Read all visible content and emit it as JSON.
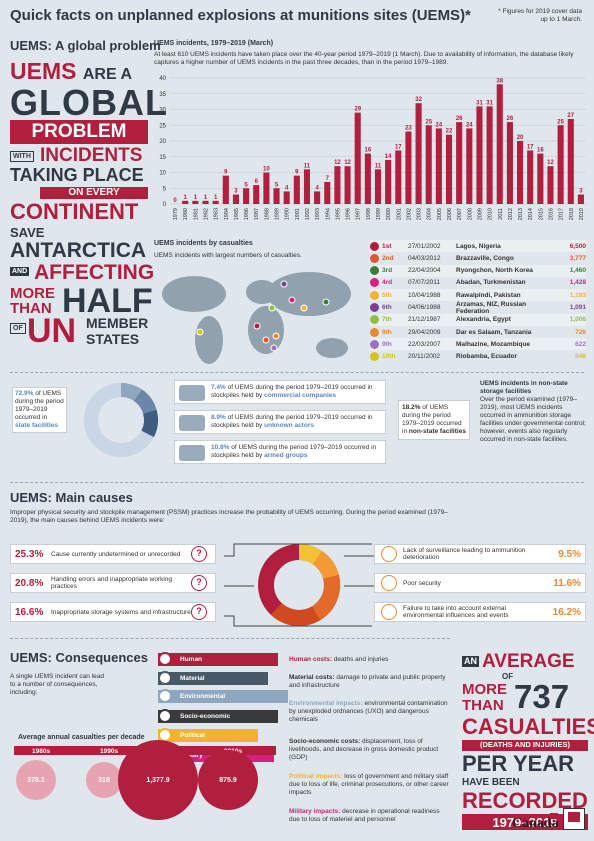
{
  "header": {
    "title": "Quick facts on unplanned explosions at munitions sites (UEMS)*",
    "footnote_line1": "* Figures for 2019 cover data",
    "footnote_line2": "up to 1 March."
  },
  "global": {
    "section_title": "UEMS: A global problem",
    "slogan": {
      "w1": "UEMS",
      "w2": "ARE A",
      "w3": "GLOBAL",
      "w4": "PROBLEM",
      "w5": "WITH",
      "w6": "INCIDENTS",
      "w7": "TAKING PLACE",
      "w8": "ON EVERY",
      "w9": "CONTINENT",
      "w10": "SAVE",
      "w11": "ANTARCTICA",
      "w12": "AND",
      "w13": "AFFECTING",
      "w14": "MORE",
      "w15": "THAN",
      "w16": "HALF",
      "w17": "OF",
      "w18": "UN",
      "w19": "MEMBER",
      "w20": "STATES"
    }
  },
  "chart_title": "UEMS incidents, 1979–2019 (March)",
  "chart_desc": "At least 610 UEMS incidents have taken place over the 40-year period 1979–2019 (1 March). Due to availability of information, the database likely captures a higher number of UEMS incidents in the past three decades, than in the period 1979–1989.",
  "chart_data": {
    "type": "bar",
    "title": "UEMS incidents, 1979–2019 (March)",
    "ylim": [
      0,
      40
    ],
    "yticks": [
      0,
      5,
      10,
      15,
      20,
      25,
      30,
      35,
      40
    ],
    "categories": [
      "1979",
      "1980",
      "1981",
      "1982",
      "1983",
      "1984",
      "1985",
      "1986",
      "1987",
      "1988",
      "1989",
      "1990",
      "1991",
      "1992",
      "1993",
      "1994",
      "1995",
      "1996",
      "1997",
      "1998",
      "1999",
      "2000",
      "2001",
      "2002",
      "2003",
      "2004",
      "2005",
      "2006",
      "2007",
      "2008",
      "2009",
      "2010",
      "2011",
      "2012",
      "2013",
      "2014",
      "2015",
      "2016",
      "2017",
      "2018",
      "2019"
    ],
    "values": [
      0,
      1,
      1,
      1,
      1,
      9,
      3,
      5,
      6,
      10,
      5,
      4,
      9,
      11,
      4,
      7,
      12,
      12,
      29,
      16,
      11,
      14,
      17,
      23,
      32,
      25,
      24,
      22,
      26,
      24,
      31,
      31,
      38,
      26,
      20,
      17,
      16,
      12,
      25,
      27,
      3
    ],
    "bar_color": "#b01f3e"
  },
  "casualties": {
    "title": "UEMS incidents by casualties",
    "subtitle": "UEMS incidents with largest numbers of casualties.",
    "rows": [
      {
        "rank": "1st",
        "date": "27/01/2002",
        "place": "Lagos, Nigeria",
        "num": "6,500",
        "color": "#b01f3e"
      },
      {
        "rank": "2nd",
        "date": "04/03/2012",
        "place": "Brazzaville, Congo",
        "num": "3,777",
        "color": "#e0572a"
      },
      {
        "rank": "3rd",
        "date": "22/04/2004",
        "place": "Ryongchon, North Korea",
        "num": "1,460",
        "color": "#3b7d3b"
      },
      {
        "rank": "4rd",
        "date": "07/07/2011",
        "place": "Abadan, Turkmenistan",
        "num": "1,428",
        "color": "#d6207c"
      },
      {
        "rank": "5th",
        "date": "10/04/1988",
        "place": "Rawalpindi, Pakistan",
        "num": "1,193",
        "color": "#f2b233"
      },
      {
        "rank": "6th",
        "date": "04/06/1988",
        "place": "Arzamas, NIZ, Russian Federation",
        "num": "1,091",
        "color": "#7b3f98"
      },
      {
        "rank": "7th",
        "date": "21/12/1987",
        "place": "Alexandria, Egypt",
        "num": "1,006",
        "color": "#8fbf3f"
      },
      {
        "rank": "8th",
        "date": "29/04/2009",
        "place": "Dar es Salaam, Tanzania",
        "num": "726",
        "color": "#e98a2f"
      },
      {
        "rank": "9th",
        "date": "22/03/2007",
        "place": "Malhazine, Mozambique",
        "num": "622",
        "color": "#a070c0"
      },
      {
        "rank": "10th",
        "date": "20/11/2002",
        "place": "Riobamba, Ecuador",
        "num": "548",
        "color": "#d8c21a"
      }
    ]
  },
  "stockpile": {
    "pct_main": "72.9%",
    "main_text": "of UEMS during the period 1979–2019 occurred in",
    "main_hl": "state facilities",
    "items": [
      {
        "pct": "7.4%",
        "text": "of UEMS during the period 1979–2019 occurred in stockpiles held by",
        "hl": "commercial companies"
      },
      {
        "pct": "8.9%",
        "text": "of UEMS during the period 1979–2019 occurred in stockpiles held by",
        "hl": "unknown actors"
      },
      {
        "pct": "10.8%",
        "text": "of UEMS during the period 1979–2019 occurred in stockpiles held by",
        "hl": "armed groups"
      }
    ],
    "nonstate_pct": "18.2%",
    "nonstate_text": "of UEMS during the period 1979–2019 occurred in",
    "nonstate_hl": "non-state facilities",
    "side_title": "UEMS incidents in non-state storage facilities",
    "side_text": "Over the period examined (1979–2019), most UEMS incidents occurred in ammunition storage facilities under governmental control; however, events also regularly occurred in non-state facilities."
  },
  "causes": {
    "section_title": "UEMS: Main causes",
    "intro": "Improper physical security and stockpile management (PSSM) practices increase the probability of UEMS occurring. During the period examined (1979–2019), the main causes behind UEMS incidents were:",
    "left": [
      {
        "pct": "25.3%",
        "text": "Cause currently undetermined or unrecorded",
        "icon": "question-icon"
      },
      {
        "pct": "20.8%",
        "text": "Handling errors and inappropriate working practices",
        "icon": "workers-icon"
      },
      {
        "pct": "16.6%",
        "text": "Inappropriate storage systems and infrastructure",
        "icon": "storage-icon"
      }
    ],
    "right": [
      {
        "pct": "9.5%",
        "text": "Lack of surveillance leading to ammunition deterioration",
        "icon": "rust-icon"
      },
      {
        "pct": "11.6%",
        "text": "Poor security",
        "icon": "lock-icon"
      },
      {
        "pct": "16.2%",
        "text": "Failure to take into account external environmental influences and events",
        "icon": "weather-icon"
      }
    ]
  },
  "consequences": {
    "section_title": "UEMS: Consequences",
    "intro": "A single UEMS incident can lead to a number of consequences, including:",
    "tabs": [
      {
        "label": "Human",
        "color": "#b01f3e",
        "icon": "person-icon"
      },
      {
        "label": "Material",
        "color": "#4a5966",
        "icon": "globe-icon"
      },
      {
        "label": "Environmental",
        "color": "#8fa6bf",
        "icon": "leaf-icon"
      },
      {
        "label": "Socio-economic",
        "color": "#3a3a3a",
        "icon": "handshake-icon"
      },
      {
        "label": "Political",
        "color": "#f2b233",
        "icon": "building-icon"
      },
      {
        "label": "Military",
        "color": "#d6207c",
        "icon": "shield-icon"
      }
    ],
    "details": [
      {
        "head": "Human costs:",
        "text": "deaths and injuries",
        "color": "#b01f3e"
      },
      {
        "head": "Material costs:",
        "text": "damage to private and public property and infrastructure",
        "color": "#333"
      },
      {
        "head": "Environmental impacts:",
        "text": "environmental contamination by unexploded ordnances (UXO) and dangerous chemicals",
        "color": "#8fa6bf"
      },
      {
        "head": "Socio-economic costs:",
        "text": "displacement, loss of livelihoods, and decrease in gross domestic product (GDP)",
        "color": "#333"
      },
      {
        "head": "Political impacts:",
        "text": "loss of government and military staff due to loss of life, criminal prosecutions, or other career impacts",
        "color": "#f2b233"
      },
      {
        "head": "Military impacts:",
        "text": "decrease in operational readiness due to loss of materiel and personnel",
        "color": "#d6207c"
      }
    ],
    "decade_title": "Average annual casualties per decade",
    "decades": [
      {
        "label": "1980s",
        "value": "378.1"
      },
      {
        "label": "1990s",
        "value": "318"
      },
      {
        "label": "2000s",
        "value": "1,377.9"
      },
      {
        "label": "2010s",
        "value": "875.9"
      }
    ],
    "avg": {
      "an": "AN",
      "average": "AVERAGE",
      "of": "OF",
      "more": "MORE",
      "than": "THAN",
      "num": "737",
      "casualties": "CASUALTIES",
      "paren": "(DEATHS AND INJURIES)",
      "per_year": "PER YEAR",
      "have_been": "HAVE BEEN",
      "recorded": "RECORDED",
      "range": "1979–2019"
    },
    "canada": "Canada"
  }
}
